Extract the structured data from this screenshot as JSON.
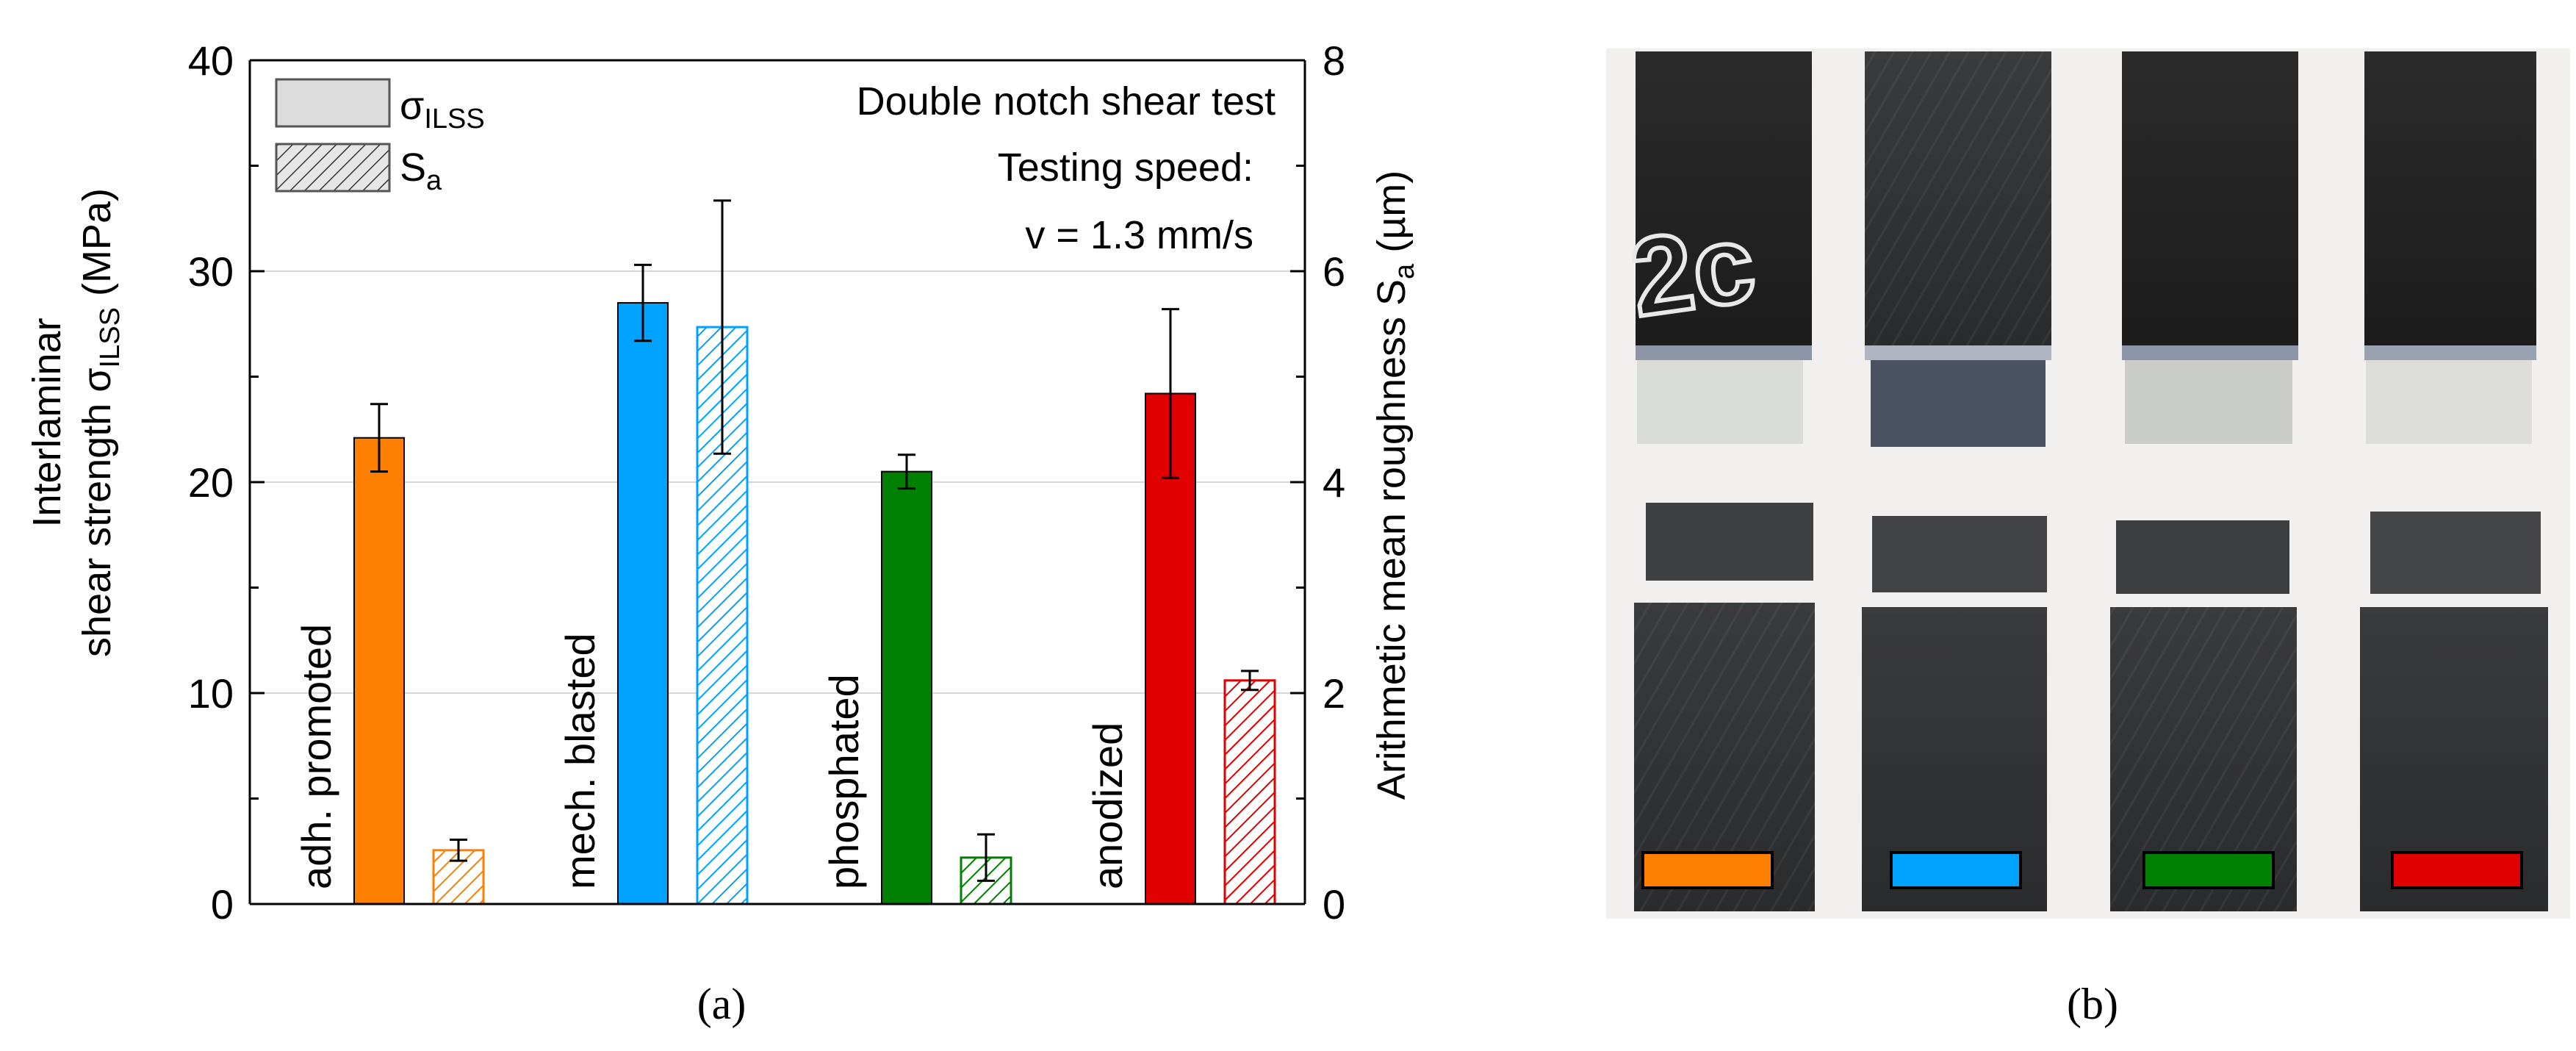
{
  "panel_a": {
    "caption": "(a)",
    "chart_data": {
      "type": "bar",
      "categories": [
        "adh. promoted",
        "mech. blasted",
        "phosphated",
        "anodized"
      ],
      "colors": {
        "adh. promoted": "#ff8000",
        "mech. blasted": "#00a2ff",
        "phosphated": "#008000",
        "anodized": "#e00000"
      },
      "series": [
        {
          "name": "σILSS",
          "name_main": "σ",
          "name_sub": "ILSS",
          "axis": "left",
          "values": [
            22.1,
            28.5,
            20.5,
            24.2
          ],
          "errors": [
            1.6,
            1.8,
            0.8,
            4.0
          ]
        },
        {
          "name": "Sa",
          "name_main": "S",
          "name_sub": "a",
          "axis": "right",
          "pattern": "hatched",
          "values": [
            0.51,
            5.47,
            0.44,
            2.12
          ],
          "errors": [
            0.1,
            1.2,
            0.22,
            0.09
          ]
        }
      ],
      "ylim": [
        0,
        40
      ],
      "y2lim": [
        0,
        8
      ],
      "yticks": [
        "0",
        "10",
        "20",
        "30",
        "40"
      ],
      "y2ticks": [
        "0",
        "2",
        "4",
        "6",
        "8"
      ],
      "ylabel": {
        "line1": "Interlaminar",
        "line2_main": "shear strength σ",
        "line2_sub": "ILSS",
        "line2_unit": " (MPa)"
      },
      "y2label": {
        "main": "Arithmetic mean roughness S",
        "sub": "a",
        "unit": " (µm)"
      },
      "grid": true,
      "legend_position": "top-left",
      "annotations": {
        "title": "Double notch shear test",
        "speed_label": "Testing speed:",
        "speed_value": "v = 1.3 mm/s"
      }
    }
  },
  "panel_b": {
    "caption": "(b)",
    "swatch_colors": [
      "#ff8000",
      "#00a2ff",
      "#008000",
      "#e00000"
    ]
  }
}
